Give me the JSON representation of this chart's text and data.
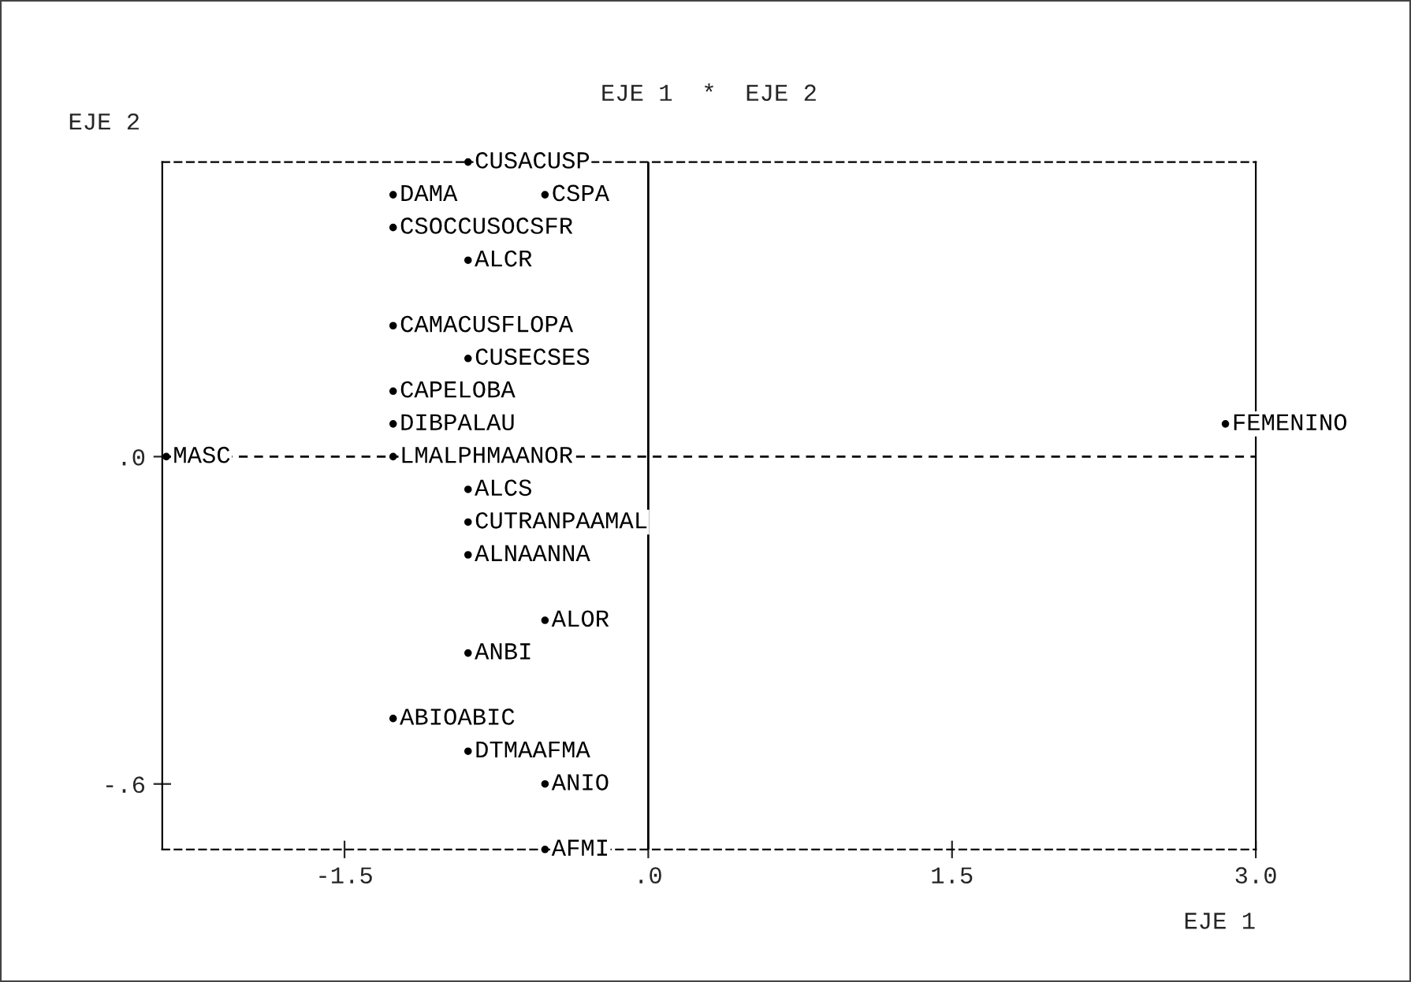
{
  "chart_data": {
    "type": "scatter",
    "title": "EJE 1  *  EJE 2",
    "xlabel": "EJE 1",
    "ylabel": "EJE 2",
    "xlim": [
      -2.4,
      3.0
    ],
    "ylim": [
      -0.72,
      0.54
    ],
    "xticks": [
      {
        "value": -1.5,
        "label": "-1.5"
      },
      {
        "value": 0,
        "label": ".0"
      },
      {
        "value": 1.5,
        "label": "1.5"
      },
      {
        "value": 3.0,
        "label": "3.0"
      }
    ],
    "yticks": [
      {
        "value": 0,
        "label": ".0"
      },
      {
        "value": -0.6,
        "label": "-.6"
      }
    ],
    "ref_lines": [
      {
        "axis": "y",
        "value": 0,
        "line_style": "dashed",
        "color": "#000000"
      },
      {
        "axis": "x",
        "value": 0,
        "line_style": "solid",
        "color": "#000000"
      }
    ],
    "marker": "circle",
    "grid": false,
    "legend": false,
    "series": [
      {
        "color": "#000000",
        "x": [
          -0.89,
          -1.26,
          -0.51,
          -1.26,
          -0.89,
          -1.26,
          -0.89,
          -1.26,
          -1.26,
          -1.26,
          -2.38,
          -0.89,
          -0.89,
          -0.89,
          -0.51,
          -0.89,
          -1.26,
          -0.89,
          -0.51,
          -0.51,
          2.85
        ],
        "values": [
          0.54,
          0.48,
          0.48,
          0.42,
          0.36,
          0.24,
          0.18,
          0.12,
          0.06,
          0.0,
          0.0,
          -0.06,
          -0.12,
          -0.18,
          -0.3,
          -0.36,
          -0.48,
          -0.54,
          -0.6,
          -0.72,
          0.06
        ],
        "value_labels": [
          "CUSACUSP",
          "DAMA",
          "CSPA",
          "CSOCCUSOCSFR",
          "ALCR",
          "CAMACUSFLOPA",
          "CUSECSES",
          "CAPELOBA",
          "DIBPALAU",
          "LMALPHMAANOR",
          "MASC",
          "ALCS",
          "CUTRANPAAMAL",
          "ALNAANNA",
          "ALOR",
          "ANBI",
          "ABIOABIC",
          "DTMAAFMA",
          "ANIO",
          "AFMI",
          "FEMENINO"
        ]
      }
    ]
  }
}
